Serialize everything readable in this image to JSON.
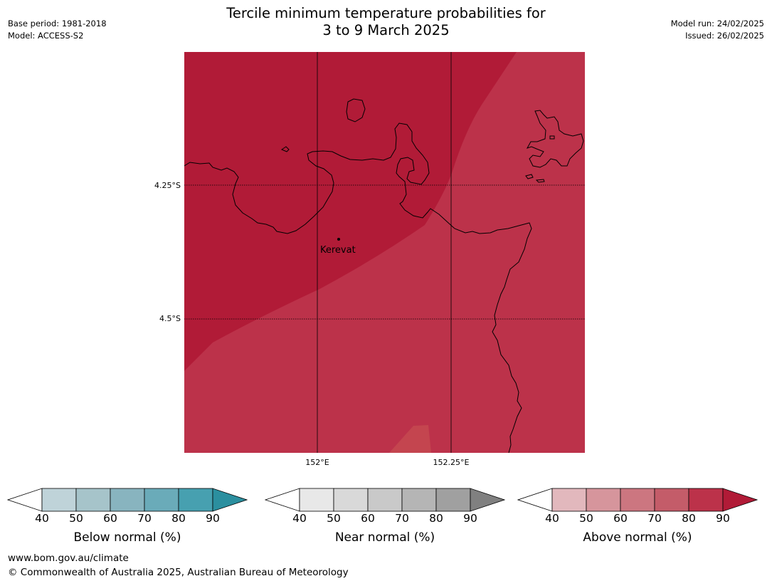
{
  "title_line1": "Tercile minimum temperature probabilities for",
  "title_line2": "3 to 9 March 2025",
  "meta_left": [
    "Base period: 1981-2018",
    "Model: ACCESS-S2"
  ],
  "meta_right": [
    "Model run: 24/02/2025",
    "Issued: 26/02/2025"
  ],
  "map": {
    "lat_labels": [
      "4.25°S",
      "4.5°S"
    ],
    "lon_labels": [
      "152°E",
      "152.25°E"
    ],
    "place": "Kerevat",
    "colors": {
      "above_80": "#b11b37",
      "above_70": "#bc324a",
      "above_60": "#c4454f",
      "coast": "#000000"
    }
  },
  "colorbars": [
    {
      "label": "Below normal (%)",
      "ticks": [
        "40",
        "50",
        "60",
        "70",
        "80",
        "90"
      ],
      "colors": [
        "#ffffff",
        "#bfd3d9",
        "#a6c4ca",
        "#88b4bf",
        "#6aabb9",
        "#47a0b0",
        "#2b8f9f"
      ]
    },
    {
      "label": "Near normal (%)",
      "ticks": [
        "40",
        "50",
        "60",
        "70",
        "80",
        "90"
      ],
      "colors": [
        "#ffffff",
        "#e8e8e8",
        "#d9d9d9",
        "#c9c9c9",
        "#b5b5b5",
        "#a0a0a0",
        "#808080"
      ]
    },
    {
      "label": "Above normal (%)",
      "ticks": [
        "40",
        "50",
        "60",
        "70",
        "80",
        "90"
      ],
      "colors": [
        "#ffffff",
        "#e2b8bd",
        "#d6959c",
        "#cc7680",
        "#c45c69",
        "#bc324a",
        "#b11b37"
      ]
    }
  ],
  "footer": [
    "www.bom.gov.au/climate",
    "© Commonwealth of Australia 2025, Australian Bureau of Meteorology"
  ]
}
